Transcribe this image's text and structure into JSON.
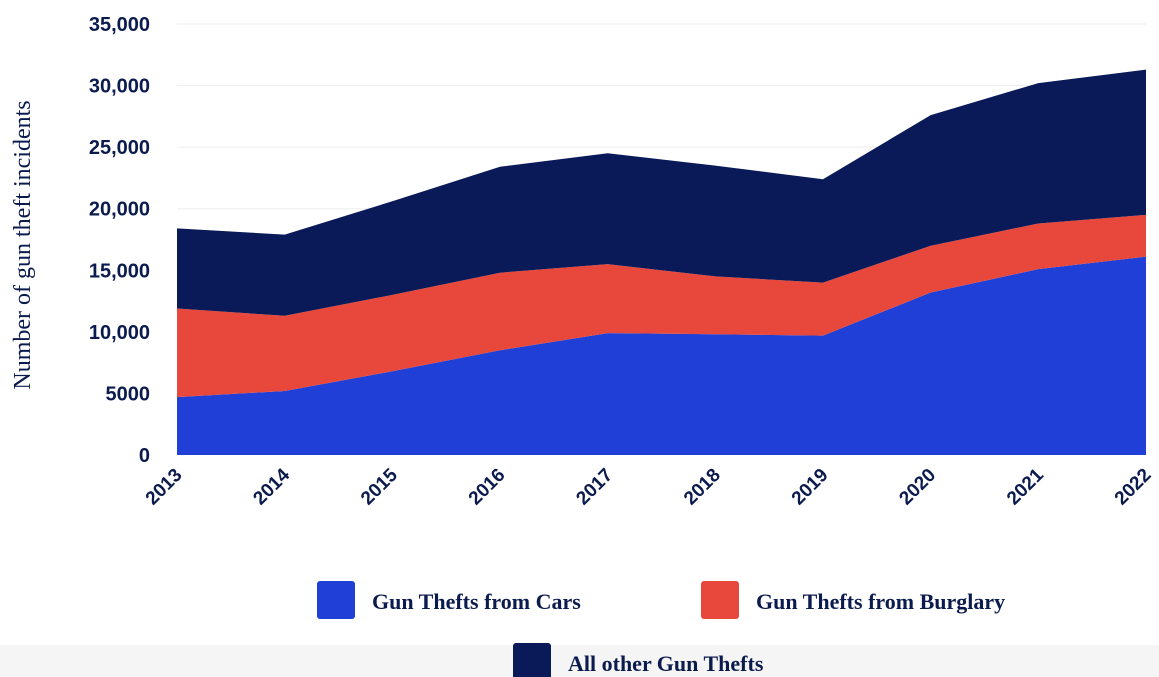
{
  "chart_data": {
    "type": "area",
    "stacked": true,
    "title": "",
    "xlabel": "",
    "ylabel": "Number of gun theft incidents",
    "ylim": [
      0,
      35000
    ],
    "y_ticks": [
      0,
      5000,
      10000,
      15000,
      20000,
      25000,
      30000,
      35000
    ],
    "y_tick_labels": [
      "0",
      "5000",
      "10,000",
      "15,000",
      "20,000",
      "25,000",
      "30,000",
      "35,000"
    ],
    "categories": [
      "2013",
      "2014",
      "2015",
      "2016",
      "2017",
      "2018",
      "2019",
      "2020",
      "2021",
      "2022"
    ],
    "grid": true,
    "legend_position": "bottom",
    "series": [
      {
        "name": "Gun Thefts from Cars",
        "color": "#1f3fd6",
        "values": [
          4700,
          5200,
          6800,
          8500,
          9900,
          9800,
          9700,
          13200,
          15100,
          16100
        ]
      },
      {
        "name": "Gun Thefts from Burglary",
        "color": "#e8483b",
        "values": [
          7200,
          6100,
          6200,
          6300,
          5600,
          4700,
          4300,
          3800,
          3700,
          3400
        ]
      },
      {
        "name": "All other Gun Thefts",
        "color": "#0a1a58",
        "values": [
          6500,
          6600,
          7600,
          8600,
          9000,
          9000,
          8400,
          10600,
          11400,
          11800
        ]
      }
    ]
  }
}
